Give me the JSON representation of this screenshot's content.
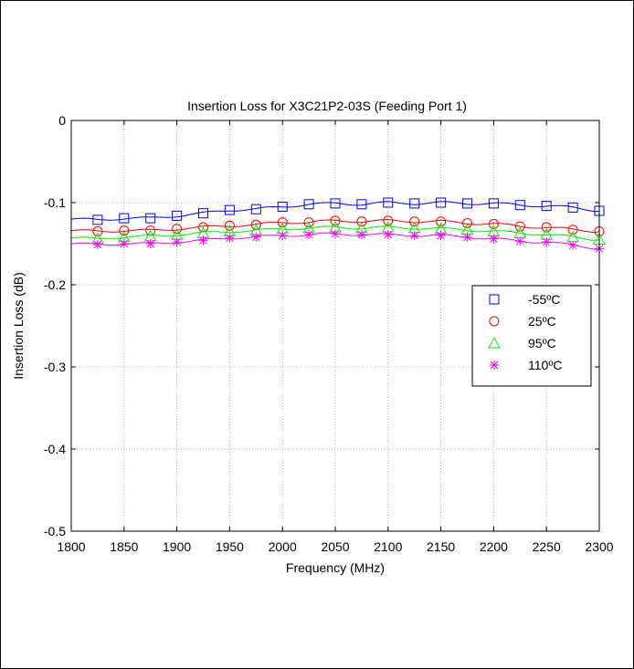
{
  "chart_data": {
    "type": "line",
    "title": "Insertion Loss for X3C21P2-03S (Feeding Port 1)",
    "xlabel": "Frequency (MHz)",
    "ylabel": "Insertion Loss (dB)",
    "xlim": [
      1800,
      2300
    ],
    "ylim": [
      -0.5,
      0
    ],
    "x_ticks": [
      "1800",
      "1850",
      "1900",
      "1950",
      "2000",
      "2050",
      "2100",
      "2150",
      "2200",
      "2250",
      "2300"
    ],
    "y_ticks": [
      "0",
      "-0.1",
      "-0.2",
      "-0.3",
      "-0.4",
      "-0.5"
    ],
    "grid": true,
    "legend_position": "right-middle",
    "x": [
      1825,
      1850,
      1875,
      1900,
      1925,
      1950,
      1975,
      2000,
      2025,
      2050,
      2075,
      2100,
      2125,
      2150,
      2175,
      2200,
      2225,
      2250,
      2275,
      2300
    ],
    "series": [
      {
        "name": "-55ºC",
        "color": "#0000ff",
        "marker": "square",
        "values": [
          -0.121,
          -0.119,
          -0.119,
          -0.116,
          -0.113,
          -0.109,
          -0.108,
          -0.105,
          -0.102,
          -0.101,
          -0.102,
          -0.1,
          -0.101,
          -0.1,
          -0.101,
          -0.101,
          -0.103,
          -0.104,
          -0.106,
          -0.11
        ]
      },
      {
        "name": "25ºC",
        "color": "#ff0000",
        "marker": "circle",
        "values": [
          -0.135,
          -0.134,
          -0.134,
          -0.132,
          -0.13,
          -0.128,
          -0.127,
          -0.124,
          -0.124,
          -0.122,
          -0.123,
          -0.122,
          -0.123,
          -0.123,
          -0.125,
          -0.126,
          -0.129,
          -0.13,
          -0.133,
          -0.135
        ]
      },
      {
        "name": "95ºC",
        "color": "#00ee00",
        "marker": "triangle",
        "values": [
          -0.144,
          -0.142,
          -0.141,
          -0.139,
          -0.137,
          -0.135,
          -0.134,
          -0.132,
          -0.131,
          -0.13,
          -0.131,
          -0.13,
          -0.131,
          -0.132,
          -0.133,
          -0.135,
          -0.137,
          -0.139,
          -0.142,
          -0.145
        ]
      },
      {
        "name": "110ºC",
        "color": "#ff00ff",
        "marker": "asterisk",
        "values": [
          -0.151,
          -0.15,
          -0.15,
          -0.148,
          -0.146,
          -0.143,
          -0.142,
          -0.14,
          -0.139,
          -0.138,
          -0.139,
          -0.139,
          -0.14,
          -0.14,
          -0.142,
          -0.144,
          -0.147,
          -0.148,
          -0.152,
          -0.156
        ]
      }
    ]
  }
}
